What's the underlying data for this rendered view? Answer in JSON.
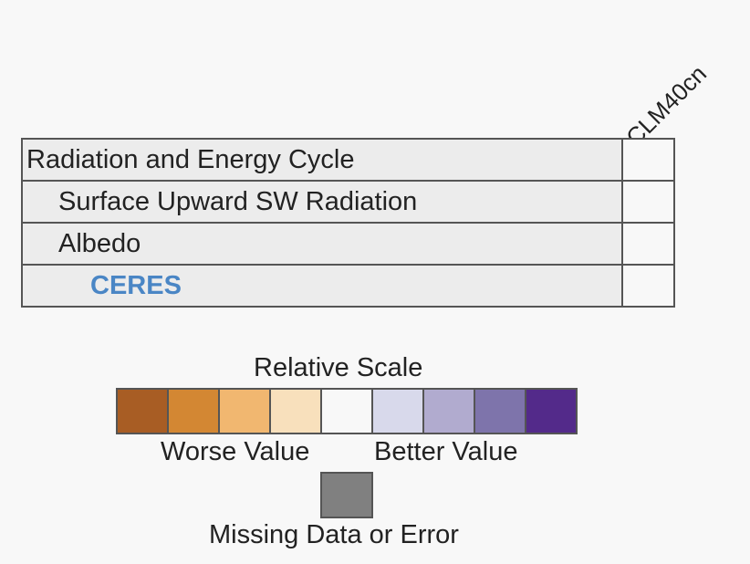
{
  "models": [
    "CLM40cn"
  ],
  "rows": [
    {
      "label": "Radiation and Energy Cycle",
      "level": 0
    },
    {
      "label": "Surface Upward SW Radiation",
      "level": 1
    },
    {
      "label": "Albedo",
      "level": 1
    },
    {
      "label": "CERES",
      "level": 2
    }
  ],
  "legend": {
    "title": "Relative Scale",
    "worse_label": "Worse Value",
    "better_label": "Better Value",
    "missing_label": "Missing Data or Error",
    "colors": [
      "#a85d24",
      "#d38733",
      "#f1b770",
      "#f8e0bc",
      "#f8f8f8",
      "#d8d9eb",
      "#b1abcf",
      "#7e74ab",
      "#532a8a"
    ],
    "missing_color": "#808080"
  }
}
